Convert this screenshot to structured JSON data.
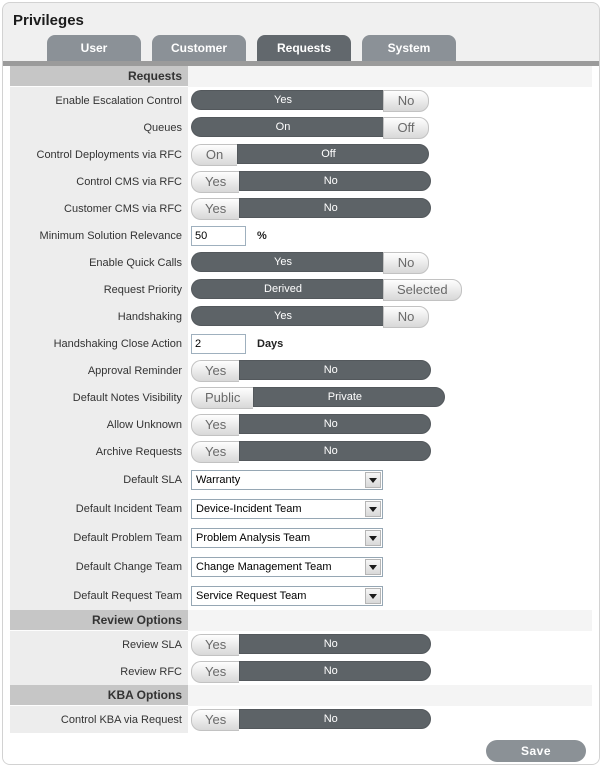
{
  "title": "Privileges",
  "tabs": [
    {
      "label": "User",
      "active": false
    },
    {
      "label": "Customer",
      "active": false
    },
    {
      "label": "Requests",
      "active": true
    },
    {
      "label": "System",
      "active": false
    }
  ],
  "rows": [
    {
      "type": "section",
      "label": "Requests"
    },
    {
      "type": "toggle",
      "label": "Enable Escalation Control",
      "options": [
        "Yes",
        "No"
      ],
      "selected": 0
    },
    {
      "type": "toggle",
      "label": "Queues",
      "options": [
        "On",
        "Off"
      ],
      "selected": 0
    },
    {
      "type": "toggle",
      "label": "Control Deployments via RFC",
      "options": [
        "On",
        "Off"
      ],
      "selected": 1
    },
    {
      "type": "toggle",
      "label": "Control CMS via RFC",
      "options": [
        "Yes",
        "No"
      ],
      "selected": 1
    },
    {
      "type": "toggle",
      "label": "Customer CMS via RFC",
      "options": [
        "Yes",
        "No"
      ],
      "selected": 1
    },
    {
      "type": "input",
      "label": "Minimum Solution Relevance",
      "value": "50",
      "unit": "%"
    },
    {
      "type": "toggle",
      "label": "Enable Quick Calls",
      "options": [
        "Yes",
        "No"
      ],
      "selected": 0
    },
    {
      "type": "toggle",
      "label": "Request Priority",
      "options": [
        "Derived",
        "Selected"
      ],
      "selected": 0
    },
    {
      "type": "toggle",
      "label": "Handshaking",
      "options": [
        "Yes",
        "No"
      ],
      "selected": 0
    },
    {
      "type": "input",
      "label": "Handshaking Close Action",
      "value": "2",
      "unit": "Days"
    },
    {
      "type": "toggle",
      "label": "Approval Reminder",
      "options": [
        "Yes",
        "No"
      ],
      "selected": 1
    },
    {
      "type": "toggle",
      "label": "Default Notes Visibility",
      "options": [
        "Public",
        "Private"
      ],
      "selected": 1
    },
    {
      "type": "toggle",
      "label": "Allow Unknown",
      "options": [
        "Yes",
        "No"
      ],
      "selected": 1
    },
    {
      "type": "toggle",
      "label": "Archive Requests",
      "options": [
        "Yes",
        "No"
      ],
      "selected": 1
    },
    {
      "type": "select",
      "label": "Default SLA",
      "value": "Warranty"
    },
    {
      "type": "select",
      "label": "Default Incident Team",
      "value": "Device-Incident Team"
    },
    {
      "type": "select",
      "label": "Default Problem Team",
      "value": "Problem Analysis Team"
    },
    {
      "type": "select",
      "label": "Default Change Team",
      "value": "Change Management Team"
    },
    {
      "type": "select",
      "label": "Default Request Team",
      "value": "Service Request Team"
    },
    {
      "type": "section",
      "label": "Review Options"
    },
    {
      "type": "toggle",
      "label": "Review SLA",
      "options": [
        "Yes",
        "No"
      ],
      "selected": 1
    },
    {
      "type": "toggle",
      "label": "Review RFC",
      "options": [
        "Yes",
        "No"
      ],
      "selected": 1
    },
    {
      "type": "section",
      "label": "KBA Options"
    },
    {
      "type": "toggle",
      "label": "Control KBA via Request",
      "options": [
        "Yes",
        "No"
      ],
      "selected": 1
    }
  ],
  "footer": {
    "save_label": "Save"
  },
  "colors": {
    "panel_bg": "#f0f0f0",
    "tab_inactive": "#8b9197",
    "tab_active": "#62686d",
    "tab_underbar": "#9b9b9b",
    "section_header_bg": "#c6c6c6",
    "label_column_bg": "#ededed",
    "toggle_selected_bg": "#5d6367",
    "toggle_unselected_bg": "#e6e6e6",
    "save_button_bg": "#8b9196"
  }
}
